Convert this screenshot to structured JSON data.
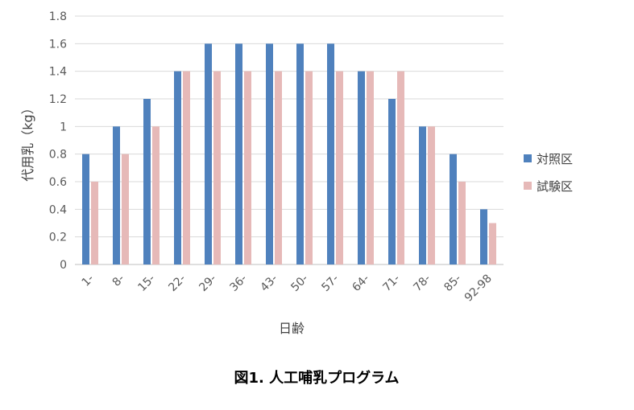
{
  "chart_data": {
    "type": "bar",
    "title": "",
    "xlabel": "日齢",
    "ylabel": "代用乳（kg）",
    "ylim": [
      0,
      1.8
    ],
    "yticks": [
      "0",
      "0.2",
      "0.4",
      "0.6",
      "0.8",
      "1",
      "1.2",
      "1.4",
      "1.6",
      "1.8"
    ],
    "categories": [
      "1-",
      "8-",
      "15-",
      "22-",
      "29-",
      "36-",
      "43-",
      "50-",
      "57-",
      "64-",
      "71-",
      "78-",
      "85-",
      "92-98"
    ],
    "series": [
      {
        "name": "対照区",
        "color": "#4F81BD",
        "values": [
          0.8,
          1.0,
          1.2,
          1.4,
          1.6,
          1.6,
          1.6,
          1.6,
          1.6,
          1.4,
          1.2,
          1.0,
          0.8,
          0.4
        ]
      },
      {
        "name": "試験区",
        "color": "#E6B9B8",
        "values": [
          0.6,
          0.8,
          1.0,
          1.4,
          1.4,
          1.4,
          1.4,
          1.4,
          1.4,
          1.4,
          1.4,
          1.0,
          0.6,
          0.3
        ]
      }
    ],
    "grid": true,
    "legend": "right"
  },
  "caption": "図1. 人工哺乳プログラム",
  "colors": {
    "grid": "#D9D9D9",
    "axis": "#BFBFBF"
  }
}
